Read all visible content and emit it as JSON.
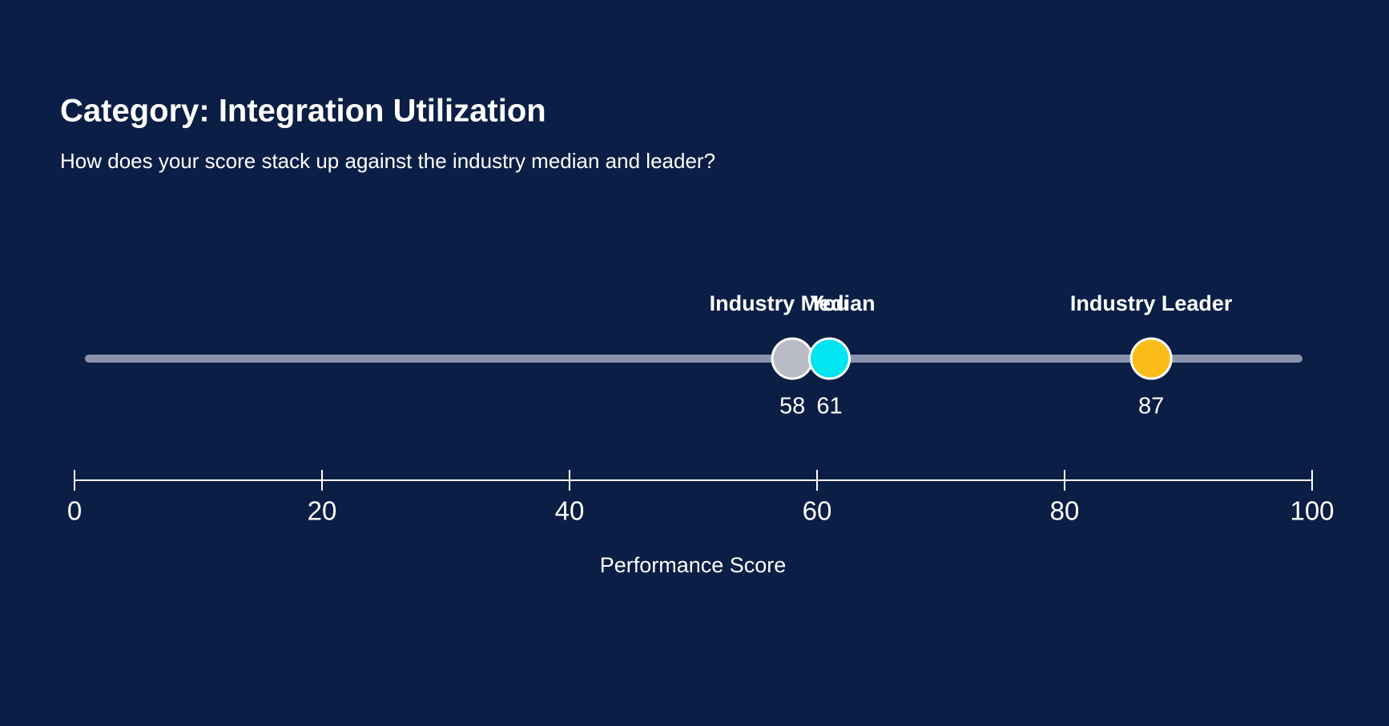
{
  "chart_data": {
    "type": "dot",
    "title": "Category: Integration Utilization",
    "subtitle": "How does your score stack up against the industry median and leader?",
    "categories": [
      "Industry Median",
      "You",
      "Industry Leader"
    ],
    "values": [
      58,
      61,
      87
    ],
    "colors": [
      "#b9bcc6",
      "#00e5f0",
      "#fbbc1a"
    ],
    "xlim": [
      0,
      100
    ],
    "xticks": [
      0,
      20,
      40,
      60,
      80,
      100
    ],
    "x_label": "Performance Score"
  }
}
